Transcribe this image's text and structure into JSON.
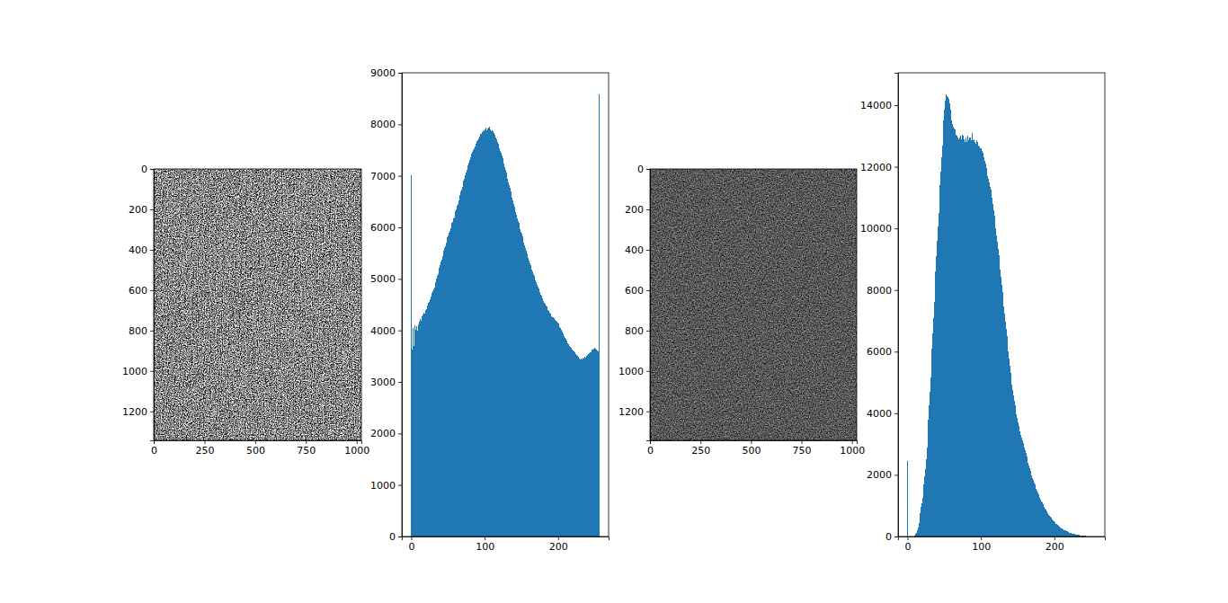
{
  "chart_data": [
    {
      "type": "image",
      "xlim": [
        -0.5,
        1023.5
      ],
      "ylim": [
        1343.5,
        -0.5
      ],
      "xticks": [
        0,
        250,
        500,
        750,
        1000
      ],
      "yticks": [
        0,
        200,
        400,
        600,
        800,
        1000,
        1200
      ]
    },
    {
      "type": "histogram",
      "color": "#1f77b4",
      "xlim": [
        -12.8,
        268.8
      ],
      "ylim": [
        0,
        9000
      ],
      "xticks": [
        0,
        100,
        200
      ],
      "yticks": [
        0,
        1000,
        2000,
        3000,
        4000,
        5000,
        6000,
        7000,
        8000,
        9000
      ],
      "bins": [
        0,
        1,
        2,
        3,
        4,
        5,
        6,
        7,
        8,
        9,
        10,
        11,
        12,
        13,
        14,
        15,
        16,
        17,
        18,
        19,
        20,
        21,
        22,
        23,
        24,
        25,
        26,
        27,
        28,
        29,
        30,
        31,
        32,
        33,
        34,
        35,
        36,
        37,
        38,
        39,
        40,
        41,
        42,
        43,
        44,
        45,
        46,
        47,
        48,
        49,
        50,
        51,
        52,
        53,
        54,
        55,
        56,
        57,
        58,
        59,
        60,
        61,
        62,
        63,
        64,
        65,
        66,
        67,
        68,
        69,
        70,
        71,
        72,
        73,
        74,
        75,
        76,
        77,
        78,
        79,
        80,
        81,
        82,
        83,
        84,
        85,
        86,
        87,
        88,
        89,
        90,
        91,
        92,
        93,
        94,
        95,
        96,
        97,
        98,
        99,
        100,
        101,
        102,
        103,
        104,
        105,
        106,
        107,
        108,
        109,
        110,
        111,
        112,
        113,
        114,
        115,
        116,
        117,
        118,
        119,
        120,
        121,
        122,
        123,
        124,
        125,
        126,
        127,
        128,
        129,
        130,
        131,
        132,
        133,
        134,
        135,
        136,
        137,
        138,
        139,
        140,
        141,
        142,
        143,
        144,
        145,
        146,
        147,
        148,
        149,
        150,
        151,
        152,
        153,
        154,
        155,
        156,
        157,
        158,
        159,
        160,
        161,
        162,
        163,
        164,
        165,
        166,
        167,
        168,
        169,
        170,
        171,
        172,
        173,
        174,
        175,
        176,
        177,
        178,
        179,
        180,
        181,
        182,
        183,
        184,
        185,
        186,
        187,
        188,
        189,
        190,
        191,
        192,
        193,
        194,
        195,
        196,
        197,
        198,
        199,
        200,
        201,
        202,
        203,
        204,
        205,
        206,
        207,
        208,
        209,
        210,
        211,
        212,
        213,
        214,
        215,
        216,
        217,
        218,
        219,
        220,
        221,
        222,
        223,
        224,
        225,
        226,
        227,
        228,
        229,
        230,
        231,
        232,
        233,
        234,
        235,
        236,
        237,
        238,
        239,
        240,
        241,
        242,
        243,
        244,
        245,
        246,
        247,
        248,
        249,
        250,
        251,
        252,
        253,
        254,
        255,
        256
      ],
      "values": [
        7020,
        3620,
        4050,
        3700,
        4100,
        3960,
        4010,
        4080,
        3990,
        4120,
        4150,
        4170,
        4220,
        4190,
        4270,
        4300,
        4310,
        4350,
        4330,
        4400,
        4420,
        4470,
        4490,
        4540,
        4560,
        4600,
        4650,
        4660,
        4720,
        4760,
        4800,
        4840,
        4900,
        4940,
        5010,
        5050,
        5100,
        5150,
        5210,
        5260,
        5330,
        5370,
        5440,
        5480,
        5550,
        5600,
        5640,
        5700,
        5740,
        5810,
        5850,
        5900,
        5930,
        5990,
        6030,
        6080,
        6110,
        6170,
        6200,
        6270,
        6310,
        6350,
        6420,
        6460,
        6530,
        6580,
        6620,
        6690,
        6740,
        6790,
        6850,
        6900,
        6950,
        7010,
        7060,
        7120,
        7160,
        7210,
        7260,
        7300,
        7360,
        7390,
        7430,
        7470,
        7500,
        7540,
        7570,
        7610,
        7630,
        7680,
        7700,
        7730,
        7760,
        7770,
        7810,
        7820,
        7850,
        7840,
        7880,
        7870,
        7900,
        7930,
        7890,
        7950,
        7910,
        7930,
        7960,
        7900,
        7920,
        7870,
        7880,
        7860,
        7830,
        7800,
        7780,
        7740,
        7710,
        7660,
        7630,
        7580,
        7530,
        7490,
        7440,
        7390,
        7340,
        7280,
        7230,
        7170,
        7120,
        7060,
        7000,
        6940,
        6880,
        6820,
        6760,
        6700,
        6640,
        6580,
        6520,
        6460,
        6400,
        6350,
        6290,
        6240,
        6180,
        6130,
        6080,
        6030,
        5970,
        5920,
        5870,
        5820,
        5760,
        5710,
        5650,
        5600,
        5550,
        5500,
        5450,
        5400,
        5350,
        5310,
        5270,
        5220,
        5180,
        5140,
        5100,
        5060,
        5010,
        4970,
        4930,
        4890,
        4850,
        4820,
        4780,
        4740,
        4700,
        4670,
        4630,
        4600,
        4570,
        4540,
        4510,
        4490,
        4460,
        4430,
        4400,
        4380,
        4350,
        4330,
        4300,
        4280,
        4260,
        4250,
        4230,
        4210,
        4190,
        4180,
        4160,
        4150,
        4130,
        4100,
        4070,
        4040,
        4010,
        3980,
        3950,
        3920,
        3890,
        3860,
        3830,
        3800,
        3780,
        3750,
        3730,
        3700,
        3680,
        3660,
        3650,
        3630,
        3610,
        3590,
        3570,
        3560,
        3540,
        3520,
        3500,
        3490,
        3470,
        3460,
        3440,
        3450,
        3430,
        3470,
        3440,
        3460,
        3480,
        3470,
        3500,
        3510,
        3520,
        3540,
        3550,
        3570,
        3580,
        3600,
        3620,
        3630,
        3650,
        3660,
        3680,
        3650,
        3630,
        3610,
        3600,
        8580
      ]
    },
    {
      "type": "image",
      "xlim": [
        -0.5,
        1023.5
      ],
      "ylim": [
        1343.5,
        -0.5
      ],
      "xticks": [
        0,
        250,
        500,
        750,
        1000
      ],
      "yticks": [
        0,
        200,
        400,
        600,
        800,
        1000,
        1200
      ]
    },
    {
      "type": "histogram",
      "color": "#1f77b4",
      "xlim": [
        -12.8,
        268.8
      ],
      "ylim": [
        0,
        15050
      ],
      "xticks": [
        0,
        100,
        200
      ],
      "yticks": [
        0,
        2000,
        4000,
        6000,
        8000,
        10000,
        12000,
        14000
      ],
      "bins": [
        0,
        1,
        2,
        3,
        4,
        5,
        6,
        7,
        8,
        9,
        10,
        11,
        12,
        13,
        14,
        15,
        16,
        17,
        18,
        19,
        20,
        21,
        22,
        23,
        24,
        25,
        26,
        27,
        28,
        29,
        30,
        31,
        32,
        33,
        34,
        35,
        36,
        37,
        38,
        39,
        40,
        41,
        42,
        43,
        44,
        45,
        46,
        47,
        48,
        49,
        50,
        51,
        52,
        53,
        54,
        55,
        56,
        57,
        58,
        59,
        60,
        61,
        62,
        63,
        64,
        65,
        66,
        67,
        68,
        69,
        70,
        71,
        72,
        73,
        74,
        75,
        76,
        77,
        78,
        79,
        80,
        81,
        82,
        83,
        84,
        85,
        86,
        87,
        88,
        89,
        90,
        91,
        92,
        93,
        94,
        95,
        96,
        97,
        98,
        99,
        100,
        101,
        102,
        103,
        104,
        105,
        106,
        107,
        108,
        109,
        110,
        111,
        112,
        113,
        114,
        115,
        116,
        117,
        118,
        119,
        120,
        121,
        122,
        123,
        124,
        125,
        126,
        127,
        128,
        129,
        130,
        131,
        132,
        133,
        134,
        135,
        136,
        137,
        138,
        139,
        140,
        141,
        142,
        143,
        144,
        145,
        146,
        147,
        148,
        149,
        150,
        151,
        152,
        153,
        154,
        155,
        156,
        157,
        158,
        159,
        160,
        161,
        162,
        163,
        164,
        165,
        166,
        167,
        168,
        169,
        170,
        171,
        172,
        173,
        174,
        175,
        176,
        177,
        178,
        179,
        180,
        181,
        182,
        183,
        184,
        185,
        186,
        187,
        188,
        189,
        190,
        191,
        192,
        193,
        194,
        195,
        196,
        197,
        198,
        199,
        200,
        201,
        202,
        203,
        204,
        205,
        206,
        207,
        208,
        209,
        210,
        211,
        212,
        213,
        214,
        215,
        216,
        217,
        218,
        219,
        220,
        221,
        222,
        223,
        224,
        225,
        226,
        227,
        228,
        229,
        230,
        231,
        232,
        233,
        234,
        235,
        236,
        237,
        238,
        239,
        240,
        241,
        242,
        243,
        244,
        245,
        246,
        247,
        248,
        249,
        250,
        251,
        252,
        253,
        254,
        255,
        256
      ],
      "values": [
        2450,
        0,
        0,
        0,
        0,
        0,
        2,
        5,
        10,
        25,
        50,
        80,
        130,
        200,
        300,
        430,
        580,
        760,
        950,
        1080,
        1250,
        1450,
        1700,
        1950,
        2200,
        2500,
        2900,
        3350,
        3800,
        4250,
        4700,
        5150,
        5600,
        6100,
        6600,
        7100,
        7600,
        8100,
        8600,
        9100,
        9600,
        10050,
        10500,
        10950,
        11400,
        11850,
        12300,
        12700,
        13100,
        13500,
        13850,
        14150,
        14350,
        14300,
        14350,
        14250,
        14200,
        14050,
        13850,
        13650,
        13500,
        13400,
        13300,
        13250,
        13200,
        13100,
        13050,
        13000,
        12950,
        12900,
        12900,
        12950,
        13000,
        12900,
        13050,
        13000,
        12850,
        12900,
        12800,
        12950,
        12800,
        12900,
        13000,
        12850,
        12950,
        12950,
        12850,
        12900,
        13100,
        12850,
        12900,
        12800,
        12950,
        12750,
        12850,
        12800,
        12700,
        12750,
        12650,
        12600,
        12600,
        12500,
        12450,
        12350,
        12300,
        12200,
        12100,
        11950,
        11850,
        11700,
        11600,
        11500,
        11350,
        11250,
        11100,
        11000,
        10800,
        10600,
        10400,
        10200,
        10000,
        9780,
        9560,
        9340,
        9120,
        8900,
        8660,
        8420,
        8180,
        7940,
        7700,
        7460,
        7220,
        6980,
        6740,
        6500,
        6260,
        6020,
        5780,
        5540,
        5300,
        5120,
        4940,
        4760,
        4580,
        4400,
        4260,
        4120,
        3980,
        3840,
        3700,
        3600,
        3500,
        3400,
        3300,
        3200,
        3120,
        3040,
        2960,
        2880,
        2800,
        2700,
        2600,
        2500,
        2400,
        2300,
        2220,
        2140,
        2060,
        1980,
        1900,
        1830,
        1760,
        1690,
        1620,
        1550,
        1490,
        1430,
        1370,
        1310,
        1250,
        1200,
        1150,
        1100,
        1050,
        1000,
        955,
        910,
        870,
        825,
        780,
        745,
        710,
        670,
        635,
        600,
        570,
        545,
        515,
        490,
        460,
        440,
        415,
        395,
        370,
        350,
        330,
        310,
        295,
        275,
        260,
        245,
        230,
        215,
        205,
        190,
        180,
        165,
        155,
        140,
        130,
        120,
        110,
        105,
        95,
        90,
        85,
        75,
        70,
        65,
        60,
        55,
        50,
        45,
        40,
        35,
        30,
        28,
        25,
        22,
        20,
        18,
        15,
        14,
        12,
        10,
        9,
        8,
        7,
        6,
        5,
        4,
        4,
        3,
        3,
        2
      ]
    }
  ]
}
